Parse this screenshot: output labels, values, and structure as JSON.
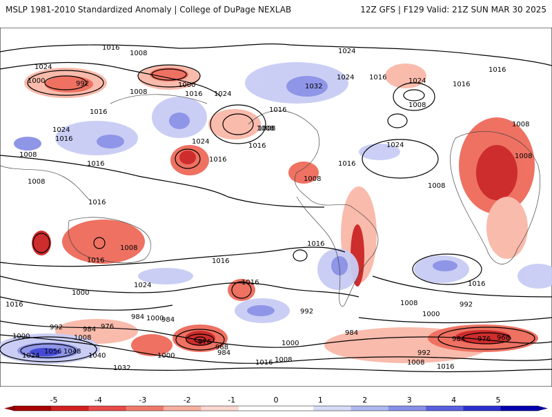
{
  "header": {
    "left": "MSLP 1981-2010 Standardized Anomaly | College of DuPage NEXLAB",
    "right": "12Z GFS | F129 Valid: 21Z SUN MAR 30 2025"
  },
  "isobar_labels": [
    "1016",
    "1008",
    "1024",
    "1000",
    "992",
    "1008",
    "1000",
    "1016",
    "1024",
    "1032",
    "1024",
    "1016",
    "1024",
    "1008",
    "1016",
    "1016",
    "1024",
    "1008",
    "1024",
    "1016",
    "1008",
    "1008",
    "1016",
    "1024",
    "1016",
    "1016",
    "1008",
    "1008",
    "1016",
    "1008",
    "1016",
    "1016",
    "1008",
    "1024",
    "1016",
    "1008",
    "1016",
    "1008",
    "1016",
    "992",
    "1016",
    "1000",
    "1016",
    "1024",
    "984",
    "976",
    "1000",
    "1008",
    "992",
    "984",
    "1000",
    "984",
    "976",
    "968",
    "984",
    "1000",
    "1016",
    "984",
    "992",
    "1008",
    "1016",
    "984",
    "976",
    "1040",
    "1032",
    "1024",
    "1056",
    "1048",
    "1000",
    "1008",
    "968",
    "1016",
    "992",
    "1000",
    "1008",
    "1016"
  ],
  "colorbar": {
    "ticks": [
      "-5",
      "-4",
      "-3",
      "-2",
      "-1",
      "0",
      "1",
      "2",
      "3",
      "4",
      "5"
    ],
    "colors": [
      "#a80000",
      "#d42020",
      "#e84a4a",
      "#f07a6a",
      "#f7b0a0",
      "#fbd8d0",
      "#ffffff",
      "#ffffff",
      "#d8dcf8",
      "#b0b8f0",
      "#8890e8",
      "#5860e0",
      "#2a30d0",
      "#0000b0"
    ],
    "negative_color": "#8b0000",
    "positive_color": "#0000a0"
  },
  "legend_colors": {
    "neg_strong": "#cc2222",
    "neg_mid": "#ee6a5a",
    "neg_light": "#f9b8a8",
    "pos_light": "#c8ccf4",
    "pos_mid": "#8a90e6",
    "pos_strong": "#3a40d4"
  }
}
